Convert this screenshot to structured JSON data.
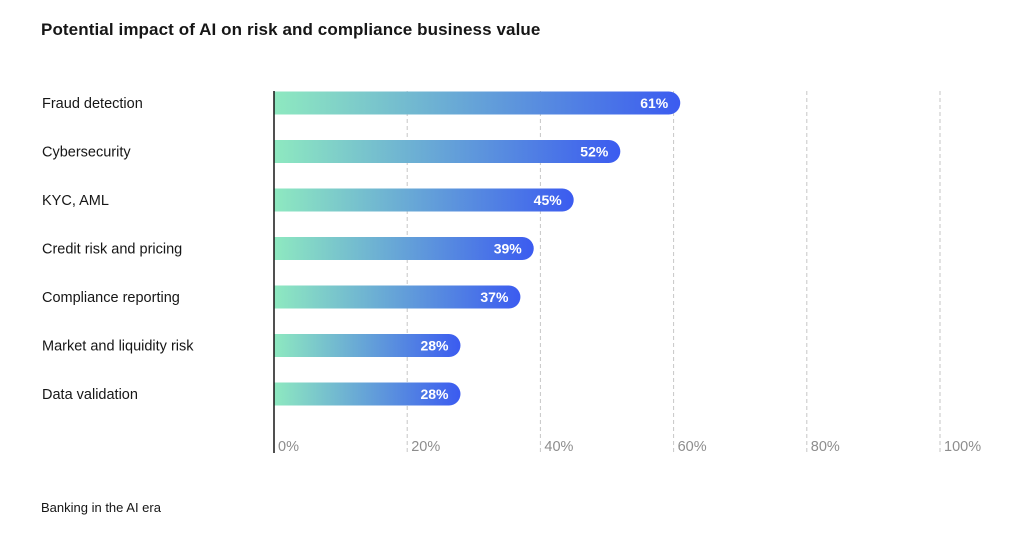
{
  "chart_data": {
    "type": "bar",
    "orientation": "horizontal",
    "title": "Potential impact of AI on risk and compliance business value",
    "categories": [
      "Fraud detection",
      "Cybersecurity",
      "KYC, AML",
      "Credit risk and pricing",
      "Compliance reporting",
      "Market and liquidity risk",
      "Data validation"
    ],
    "values": [
      61,
      52,
      45,
      39,
      37,
      28,
      28
    ],
    "value_labels": [
      "61%",
      "52%",
      "45%",
      "39%",
      "37%",
      "28%",
      "28%"
    ],
    "xlim": [
      0,
      100
    ],
    "x_ticks": [
      0,
      20,
      40,
      60,
      80,
      100
    ],
    "x_tick_labels": [
      "0%",
      "20%",
      "40%",
      "60%",
      "80%",
      "100%"
    ],
    "grid": "vertical dashed",
    "colors": {
      "bar_start": "#8ee9c0",
      "bar_end": "#3b5bf0",
      "grid": "#c6c6c6",
      "axis": "#161616",
      "tick_text": "#8d8d8d"
    }
  },
  "footer": "Banking in the AI era"
}
